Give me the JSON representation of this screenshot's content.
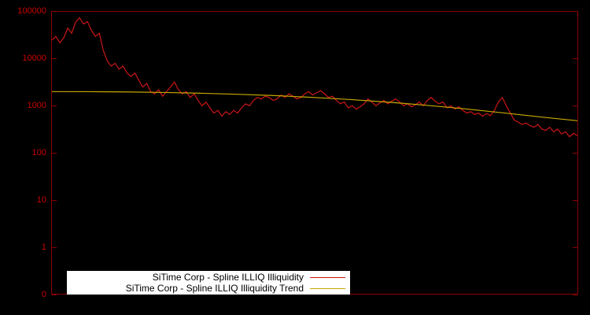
{
  "colors": {
    "background": "#000000",
    "axis_border": "#8b0000",
    "tick_label": "#cc0000",
    "series_red": "#cc1616",
    "series_trend": "#c8a800",
    "legend_background": "#ffffff",
    "legend_text": "#000000"
  },
  "legend": {
    "items": [
      {
        "label": "SiTime Corp - Spline ILLIQ Illiquidity",
        "color": "#cc1616"
      },
      {
        "label": "SiTime Corp - Spline ILLIQ Illiquidity Trend",
        "color": "#c8a800"
      }
    ]
  },
  "chart_data": {
    "type": "line",
    "title": "",
    "xlabel": "",
    "ylabel": "",
    "yscale": "log",
    "ylim": [
      0.1,
      100000
    ],
    "grid": false,
    "legend_position": "bottom-center",
    "yticks": [
      {
        "label": "100000",
        "value": 100000
      },
      {
        "label": "10000",
        "value": 10000
      },
      {
        "label": "1000",
        "value": 1000
      },
      {
        "label": "100",
        "value": 100
      },
      {
        "label": "10",
        "value": 10
      },
      {
        "label": "1",
        "value": 1
      },
      {
        "label": "0",
        "value": 0.1
      }
    ],
    "series": [
      {
        "id": "illiq-line",
        "name": "SiTime Corp - Spline ILLIQ Illiquidity",
        "color": "#cc1616",
        "stroke_width": 1.2,
        "values": [
          25000,
          30000,
          22000,
          28000,
          45000,
          35000,
          60000,
          75000,
          55000,
          62000,
          40000,
          30000,
          35000,
          15000,
          9000,
          7000,
          8000,
          6000,
          7000,
          5000,
          4200,
          5000,
          3500,
          2500,
          3000,
          2000,
          1800,
          2200,
          1600,
          2000,
          2500,
          3200,
          2200,
          1800,
          2000,
          1500,
          1800,
          1300,
          1000,
          1200,
          900,
          700,
          800,
          600,
          750,
          650,
          800,
          700,
          900,
          1100,
          1000,
          1300,
          1500,
          1400,
          1600,
          1500,
          1300,
          1400,
          1700,
          1500,
          1800,
          1600,
          1400,
          1500,
          1800,
          2000,
          1700,
          1900,
          2100,
          1800,
          1500,
          1600,
          1300,
          1100,
          1200,
          900,
          1000,
          850,
          950,
          1100,
          1400,
          1200,
          1000,
          1150,
          1300,
          1100,
          1250,
          1400,
          1200,
          1000,
          1100,
          950,
          1050,
          1200,
          1000,
          1300,
          1500,
          1250,
          1100,
          1200,
          900,
          1000,
          850,
          950,
          800,
          700,
          750,
          650,
          700,
          600,
          680,
          620,
          800,
          1200,
          1500,
          1000,
          700,
          500,
          450,
          400,
          430,
          380,
          350,
          400,
          320,
          300,
          350,
          280,
          320,
          250,
          280,
          220,
          260,
          230
        ]
      },
      {
        "id": "trend-line",
        "name": "SiTime Corp - Spline ILLIQ Illiquidity Trend",
        "color": "#c8a800",
        "stroke_width": 1.2,
        "values": [
          2000,
          1995,
          1970,
          1920,
          1845,
          1750,
          1640,
          1500,
          1350,
          1190,
          1020,
          860,
          710,
          580,
          480
        ]
      }
    ]
  }
}
